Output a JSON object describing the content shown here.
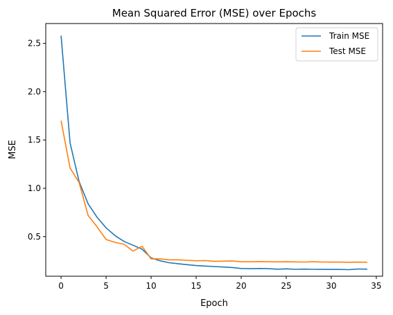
{
  "chart_data": {
    "type": "line",
    "title": "Mean Squared Error (MSE) over Epochs",
    "xlabel": "Epoch",
    "ylabel": "MSE",
    "xlim": [
      -1.7,
      35.7
    ],
    "ylim": [
      0.09,
      2.705
    ],
    "xticks": [
      0,
      5,
      10,
      15,
      20,
      25,
      30,
      35
    ],
    "yticks": [
      0.5,
      1.0,
      1.5,
      2.0,
      2.5
    ],
    "xtick_labels": [
      "0",
      "5",
      "10",
      "15",
      "20",
      "25",
      "30",
      "35"
    ],
    "ytick_labels": [
      "0.5",
      "1.0",
      "1.5",
      "2.0",
      "2.5"
    ],
    "grid": false,
    "legend_position": "top-right",
    "x": [
      0,
      1,
      2,
      3,
      4,
      5,
      6,
      7,
      8,
      9,
      10,
      11,
      12,
      13,
      14,
      15,
      16,
      17,
      18,
      19,
      20,
      21,
      22,
      23,
      24,
      25,
      26,
      27,
      28,
      29,
      30,
      31,
      32,
      33,
      34
    ],
    "series": [
      {
        "name": "Train MSE",
        "color": "#1f77b4",
        "values": [
          2.58,
          1.47,
          1.07,
          0.84,
          0.7,
          0.59,
          0.51,
          0.45,
          0.41,
          0.37,
          0.28,
          0.25,
          0.23,
          0.22,
          0.21,
          0.2,
          0.195,
          0.19,
          0.185,
          0.18,
          0.17,
          0.168,
          0.17,
          0.168,
          0.163,
          0.167,
          0.162,
          0.164,
          0.162,
          0.161,
          0.16,
          0.16,
          0.158,
          0.165,
          0.163
        ]
      },
      {
        "name": "Test MSE",
        "color": "#ff7f0e",
        "values": [
          1.7,
          1.21,
          1.06,
          0.72,
          0.6,
          0.47,
          0.44,
          0.42,
          0.35,
          0.4,
          0.27,
          0.27,
          0.26,
          0.26,
          0.255,
          0.25,
          0.252,
          0.245,
          0.246,
          0.248,
          0.24,
          0.24,
          0.242,
          0.24,
          0.238,
          0.24,
          0.238,
          0.237,
          0.24,
          0.237,
          0.236,
          0.236,
          0.235,
          0.236,
          0.235
        ]
      }
    ]
  }
}
